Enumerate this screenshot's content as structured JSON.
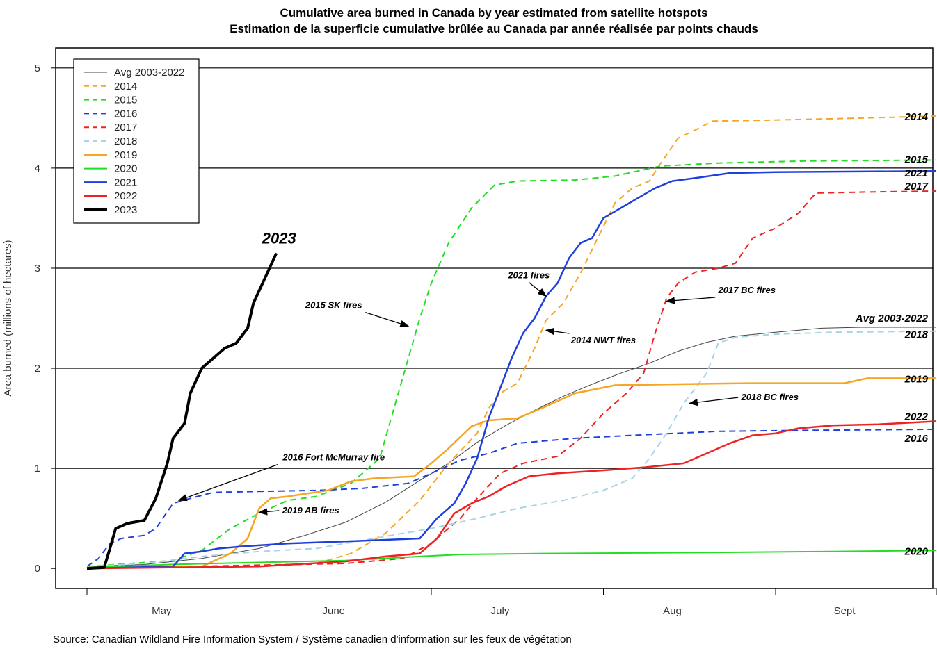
{
  "title_en": "Cumulative area burned in Canada by year estimated from satellite hotspots",
  "title_fr": "Estimation de la superficie cumulative brûlée au Canada par année réalisée par points chauds",
  "source": "Source: Canadian Wildland Fire Information System / Système canadien d'information sur les feux de végétation",
  "chart_data": {
    "type": "line",
    "xlabel": "",
    "ylabel": "Area burned (millions of hectares)",
    "x_unit": "day of year",
    "xlim": [
      120,
      268
    ],
    "ylim": [
      -0.2,
      5.2
    ],
    "yticks": [
      0,
      1,
      2,
      3,
      4,
      5
    ],
    "grid_y": [
      1,
      2,
      3,
      4,
      5
    ],
    "month_ticks": [
      120,
      150,
      180,
      210,
      240,
      268
    ],
    "month_labels": [
      {
        "label": "May",
        "x": 133
      },
      {
        "label": "June",
        "x": 163
      },
      {
        "label": "July",
        "x": 192
      },
      {
        "label": "Aug",
        "x": 222
      },
      {
        "label": "Sept",
        "x": 252
      }
    ],
    "legend_position": "top-left",
    "series": [
      {
        "name": "Avg 2003-2022",
        "color": "#444444",
        "dash": "solid",
        "width": 1,
        "end_label": "Avg 2003-2022",
        "points": [
          [
            120,
            0.02
          ],
          [
            130,
            0.04
          ],
          [
            140,
            0.1
          ],
          [
            150,
            0.2
          ],
          [
            158,
            0.33
          ],
          [
            165,
            0.46
          ],
          [
            172,
            0.66
          ],
          [
            178,
            0.88
          ],
          [
            183,
            1.05
          ],
          [
            188,
            1.26
          ],
          [
            193,
            1.43
          ],
          [
            198,
            1.58
          ],
          [
            203,
            1.72
          ],
          [
            208,
            1.84
          ],
          [
            213,
            1.95
          ],
          [
            218,
            2.05
          ],
          [
            223,
            2.17
          ],
          [
            228,
            2.26
          ],
          [
            233,
            2.32
          ],
          [
            240,
            2.36
          ],
          [
            248,
            2.4
          ],
          [
            255,
            2.41
          ],
          [
            268,
            2.41
          ]
        ]
      },
      {
        "name": "2014",
        "color": "#f5a623",
        "dash": "dashed",
        "width": 2,
        "end_label": "2014",
        "points": [
          [
            120,
            0.01
          ],
          [
            150,
            0.02
          ],
          [
            160,
            0.05
          ],
          [
            166,
            0.15
          ],
          [
            172,
            0.35
          ],
          [
            178,
            0.68
          ],
          [
            183,
            1.05
          ],
          [
            188,
            1.35
          ],
          [
            190,
            1.6
          ],
          [
            192,
            1.75
          ],
          [
            195,
            1.85
          ],
          [
            198,
            2.2
          ],
          [
            200,
            2.48
          ],
          [
            203,
            2.65
          ],
          [
            206,
            2.95
          ],
          [
            209,
            3.3
          ],
          [
            212,
            3.65
          ],
          [
            215,
            3.8
          ],
          [
            218,
            3.87
          ],
          [
            220,
            4.05
          ],
          [
            223,
            4.3
          ],
          [
            226,
            4.38
          ],
          [
            229,
            4.47
          ],
          [
            240,
            4.48
          ],
          [
            255,
            4.5
          ],
          [
            268,
            4.52
          ]
        ]
      },
      {
        "name": "2015",
        "color": "#22dd22",
        "dash": "dashed",
        "width": 2,
        "end_label": "2015",
        "points": [
          [
            120,
            0.02
          ],
          [
            135,
            0.08
          ],
          [
            140,
            0.18
          ],
          [
            145,
            0.4
          ],
          [
            150,
            0.55
          ],
          [
            155,
            0.68
          ],
          [
            160,
            0.72
          ],
          [
            166,
            0.85
          ],
          [
            171,
            1.1
          ],
          [
            174,
            1.7
          ],
          [
            176,
            2.1
          ],
          [
            178,
            2.5
          ],
          [
            180,
            2.85
          ],
          [
            183,
            3.25
          ],
          [
            187,
            3.6
          ],
          [
            191,
            3.83
          ],
          [
            195,
            3.87
          ],
          [
            205,
            3.88
          ],
          [
            212,
            3.92
          ],
          [
            220,
            4.02
          ],
          [
            230,
            4.05
          ],
          [
            245,
            4.07
          ],
          [
            268,
            4.08
          ]
        ]
      },
      {
        "name": "2016",
        "color": "#1f3fdd",
        "dash": "dashed",
        "width": 2,
        "end_label": "2016",
        "points": [
          [
            120,
            0.02
          ],
          [
            122,
            0.1
          ],
          [
            124,
            0.25
          ],
          [
            126,
            0.3
          ],
          [
            130,
            0.33
          ],
          [
            132,
            0.4
          ],
          [
            135,
            0.65
          ],
          [
            138,
            0.7
          ],
          [
            142,
            0.76
          ],
          [
            150,
            0.77
          ],
          [
            160,
            0.78
          ],
          [
            168,
            0.8
          ],
          [
            176,
            0.85
          ],
          [
            180,
            0.95
          ],
          [
            185,
            1.08
          ],
          [
            190,
            1.15
          ],
          [
            195,
            1.25
          ],
          [
            205,
            1.3
          ],
          [
            215,
            1.33
          ],
          [
            230,
            1.37
          ],
          [
            245,
            1.38
          ],
          [
            268,
            1.39
          ]
        ]
      },
      {
        "name": "2017",
        "color": "#ee2222",
        "dash": "dashed",
        "width": 2,
        "end_label": "2017",
        "points": [
          [
            120,
            0.0
          ],
          [
            165,
            0.05
          ],
          [
            175,
            0.1
          ],
          [
            180,
            0.25
          ],
          [
            185,
            0.5
          ],
          [
            188,
            0.7
          ],
          [
            192,
            0.95
          ],
          [
            196,
            1.05
          ],
          [
            202,
            1.12
          ],
          [
            206,
            1.3
          ],
          [
            210,
            1.55
          ],
          [
            214,
            1.75
          ],
          [
            217,
            1.95
          ],
          [
            219,
            2.35
          ],
          [
            221,
            2.7
          ],
          [
            223,
            2.85
          ],
          [
            226,
            2.96
          ],
          [
            230,
            3.0
          ],
          [
            233,
            3.05
          ],
          [
            236,
            3.3
          ],
          [
            240,
            3.4
          ],
          [
            244,
            3.55
          ],
          [
            247,
            3.75
          ],
          [
            255,
            3.76
          ],
          [
            268,
            3.77
          ]
        ]
      },
      {
        "name": "2018",
        "color": "#a8d4e8",
        "dash": "dashed",
        "width": 2,
        "end_label": "2018",
        "points": [
          [
            120,
            0.02
          ],
          [
            130,
            0.05
          ],
          [
            140,
            0.12
          ],
          [
            150,
            0.17
          ],
          [
            160,
            0.2
          ],
          [
            170,
            0.3
          ],
          [
            180,
            0.4
          ],
          [
            188,
            0.5
          ],
          [
            195,
            0.6
          ],
          [
            203,
            0.68
          ],
          [
            210,
            0.78
          ],
          [
            215,
            0.9
          ],
          [
            218,
            1.1
          ],
          [
            221,
            1.35
          ],
          [
            224,
            1.65
          ],
          [
            228,
            1.95
          ],
          [
            230,
            2.25
          ],
          [
            233,
            2.31
          ],
          [
            240,
            2.34
          ],
          [
            250,
            2.36
          ],
          [
            268,
            2.37
          ]
        ]
      },
      {
        "name": "2019",
        "color": "#f5a623",
        "dash": "solid",
        "width": 2.5,
        "end_label": "2019",
        "points": [
          [
            120,
            0.01
          ],
          [
            140,
            0.02
          ],
          [
            145,
            0.15
          ],
          [
            148,
            0.3
          ],
          [
            150,
            0.6
          ],
          [
            152,
            0.7
          ],
          [
            155,
            0.72
          ],
          [
            162,
            0.78
          ],
          [
            166,
            0.87
          ],
          [
            170,
            0.9
          ],
          [
            177,
            0.92
          ],
          [
            180,
            1.05
          ],
          [
            183,
            1.2
          ],
          [
            187,
            1.42
          ],
          [
            190,
            1.48
          ],
          [
            195,
            1.5
          ],
          [
            200,
            1.62
          ],
          [
            205,
            1.75
          ],
          [
            212,
            1.83
          ],
          [
            222,
            1.84
          ],
          [
            235,
            1.85
          ],
          [
            252,
            1.85
          ],
          [
            256,
            1.9
          ],
          [
            268,
            1.9
          ]
        ]
      },
      {
        "name": "2020",
        "color": "#22dd22",
        "dash": "solid",
        "width": 2,
        "end_label": "2020",
        "points": [
          [
            120,
            0.01
          ],
          [
            135,
            0.04
          ],
          [
            150,
            0.06
          ],
          [
            165,
            0.08
          ],
          [
            178,
            0.12
          ],
          [
            185,
            0.14
          ],
          [
            200,
            0.15
          ],
          [
            230,
            0.16
          ],
          [
            250,
            0.17
          ],
          [
            268,
            0.18
          ]
        ]
      },
      {
        "name": "2021",
        "color": "#1f3fdd",
        "dash": "solid",
        "width": 2.5,
        "end_label": "2021",
        "points": [
          [
            120,
            0.0
          ],
          [
            135,
            0.02
          ],
          [
            137,
            0.15
          ],
          [
            140,
            0.17
          ],
          [
            143,
            0.2
          ],
          [
            147,
            0.22
          ],
          [
            155,
            0.25
          ],
          [
            165,
            0.27
          ],
          [
            178,
            0.3
          ],
          [
            181,
            0.5
          ],
          [
            184,
            0.65
          ],
          [
            186,
            0.85
          ],
          [
            188,
            1.1
          ],
          [
            190,
            1.5
          ],
          [
            192,
            1.8
          ],
          [
            194,
            2.1
          ],
          [
            196,
            2.35
          ],
          [
            198,
            2.5
          ],
          [
            200,
            2.72
          ],
          [
            202,
            2.85
          ],
          [
            204,
            3.1
          ],
          [
            206,
            3.25
          ],
          [
            208,
            3.3
          ],
          [
            210,
            3.5
          ],
          [
            213,
            3.6
          ],
          [
            216,
            3.7
          ],
          [
            219,
            3.8
          ],
          [
            222,
            3.87
          ],
          [
            226,
            3.9
          ],
          [
            232,
            3.95
          ],
          [
            240,
            3.96
          ],
          [
            268,
            3.97
          ]
        ]
      },
      {
        "name": "2022",
        "color": "#ee2222",
        "dash": "solid",
        "width": 2.5,
        "end_label": "2022",
        "points": [
          [
            120,
            0.0
          ],
          [
            150,
            0.02
          ],
          [
            165,
            0.07
          ],
          [
            172,
            0.12
          ],
          [
            178,
            0.15
          ],
          [
            181,
            0.3
          ],
          [
            184,
            0.55
          ],
          [
            187,
            0.65
          ],
          [
            190,
            0.72
          ],
          [
            193,
            0.82
          ],
          [
            197,
            0.92
          ],
          [
            202,
            0.95
          ],
          [
            210,
            0.98
          ],
          [
            217,
            1.01
          ],
          [
            224,
            1.05
          ],
          [
            228,
            1.15
          ],
          [
            232,
            1.25
          ],
          [
            236,
            1.33
          ],
          [
            240,
            1.35
          ],
          [
            244,
            1.4
          ],
          [
            250,
            1.43
          ],
          [
            258,
            1.44
          ],
          [
            268,
            1.47
          ]
        ]
      },
      {
        "name": "2023",
        "color": "#000000",
        "dash": "solid",
        "width": 4,
        "end_label": "2023",
        "points": [
          [
            120,
            0.0
          ],
          [
            123,
            0.01
          ],
          [
            124,
            0.2
          ],
          [
            125,
            0.4
          ],
          [
            127,
            0.45
          ],
          [
            130,
            0.48
          ],
          [
            132,
            0.7
          ],
          [
            134,
            1.05
          ],
          [
            135,
            1.3
          ],
          [
            137,
            1.45
          ],
          [
            138,
            1.75
          ],
          [
            140,
            2.0
          ],
          [
            142,
            2.1
          ],
          [
            144,
            2.2
          ],
          [
            146,
            2.25
          ],
          [
            148,
            2.4
          ],
          [
            149,
            2.65
          ],
          [
            151,
            2.9
          ],
          [
            153,
            3.15
          ]
        ]
      }
    ],
    "annotations": [
      {
        "text": "2016 Fort McMurray fire",
        "x": 163,
        "y": 1.08,
        "ax": 136,
        "ay": 0.68
      },
      {
        "text": "2019 AB fires",
        "x": 159,
        "y": 0.55,
        "ax": 150,
        "ay": 0.56
      },
      {
        "text": "2015 SK fires",
        "x": 163,
        "y": 2.6,
        "ax": 176,
        "ay": 2.42
      },
      {
        "text": "2021 fires",
        "x": 197,
        "y": 2.9,
        "ax": 200,
        "ay": 2.72
      },
      {
        "text": "2014 NWT fires",
        "x": 210,
        "y": 2.25,
        "ax": 200,
        "ay": 2.38
      },
      {
        "text": "2017 BC fires",
        "x": 235,
        "y": 2.75,
        "ax": 221,
        "ay": 2.67
      },
      {
        "text": "2018 BC fires",
        "x": 239,
        "y": 1.68,
        "ax": 225,
        "ay": 1.65
      }
    ]
  }
}
